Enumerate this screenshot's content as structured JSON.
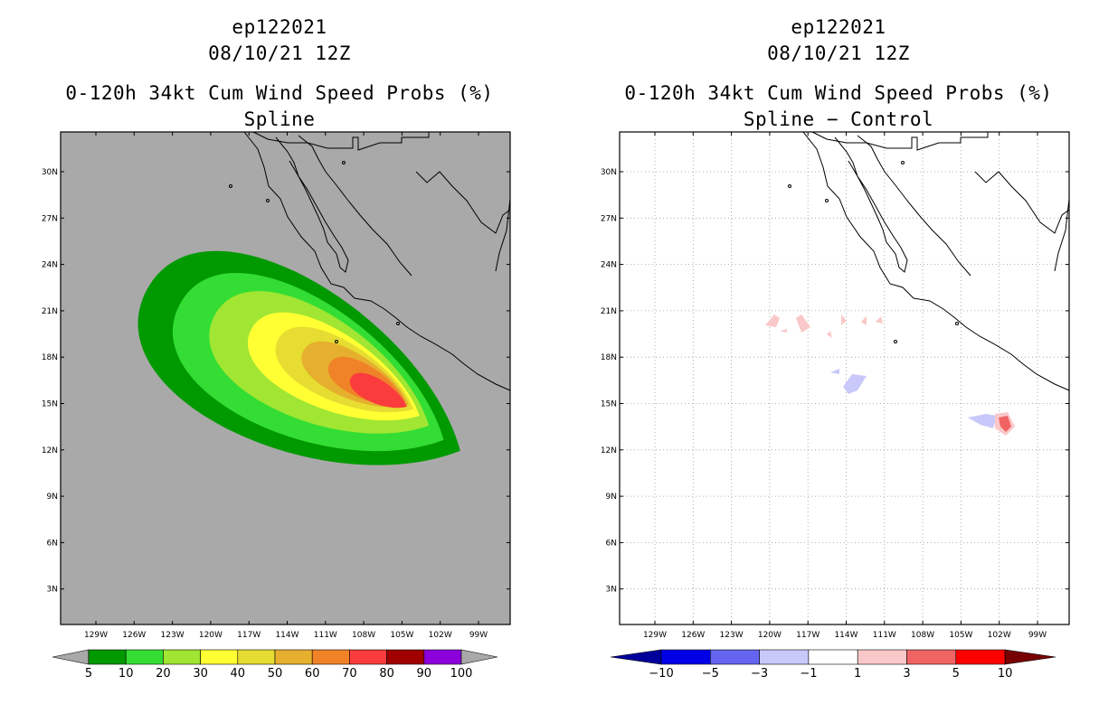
{
  "panels": [
    {
      "storm_id": "ep122021",
      "date": "08/10/21 12Z",
      "product": "0-120h 34kt Cum Wind Speed Probs (%)",
      "method": "Spline",
      "lat_labels": [
        "30N",
        "27N",
        "24N",
        "21N",
        "18N",
        "15N",
        "12N",
        "9N",
        "6N",
        "3N"
      ],
      "lon_labels": [
        "129W",
        "126W",
        "123W",
        "120W",
        "117W",
        "114W",
        "111W",
        "108W",
        "105W",
        "102W",
        "99W"
      ],
      "colorbar": {
        "labels": [
          "5",
          "10",
          "20",
          "30",
          "40",
          "50",
          "60",
          "70",
          "80",
          "90",
          "100"
        ],
        "colors": [
          "#009900",
          "#33dd33",
          "#a0e632",
          "#ffff33",
          "#e6dc32",
          "#e6af2d",
          "#f08228",
          "#fa3c3c",
          "#a00000",
          "#8c00dc"
        ],
        "end_color": "#a9a9a9"
      },
      "field": {
        "values": [
          5,
          10,
          20,
          30,
          40,
          50,
          60,
          70
        ],
        "colors": [
          "#009900",
          "#33dd33",
          "#a0e632",
          "#ffff33",
          "#e6dc32",
          "#e6af2d",
          "#f08228",
          "#fa3c3c"
        ]
      }
    },
    {
      "storm_id": "ep122021",
      "date": "08/10/21 12Z",
      "product": "0-120h 34kt Cum Wind Speed Probs (%)",
      "method": "Spline − Control",
      "lat_labels": [
        "30N",
        "27N",
        "24N",
        "21N",
        "18N",
        "15N",
        "12N",
        "9N",
        "6N",
        "3N"
      ],
      "lon_labels": [
        "129W",
        "126W",
        "123W",
        "120W",
        "117W",
        "114W",
        "111W",
        "108W",
        "105W",
        "102W",
        "99W"
      ],
      "colorbar": {
        "labels": [
          "−10",
          "−5",
          "−3",
          "−1",
          "1",
          "3",
          "5",
          "10"
        ],
        "colors": [
          "#0000e6",
          "#6464f0",
          "#c8c8fa",
          "#ffffff",
          "#fac8c8",
          "#f06464",
          "#ff0000"
        ],
        "low_color": "#00009b",
        "high_color": "#780000"
      },
      "diff_colors": {
        "pos_weak": "#fac8c8",
        "pos_mid": "#f06464",
        "neg_weak": "#c8c8fa"
      }
    }
  ]
}
